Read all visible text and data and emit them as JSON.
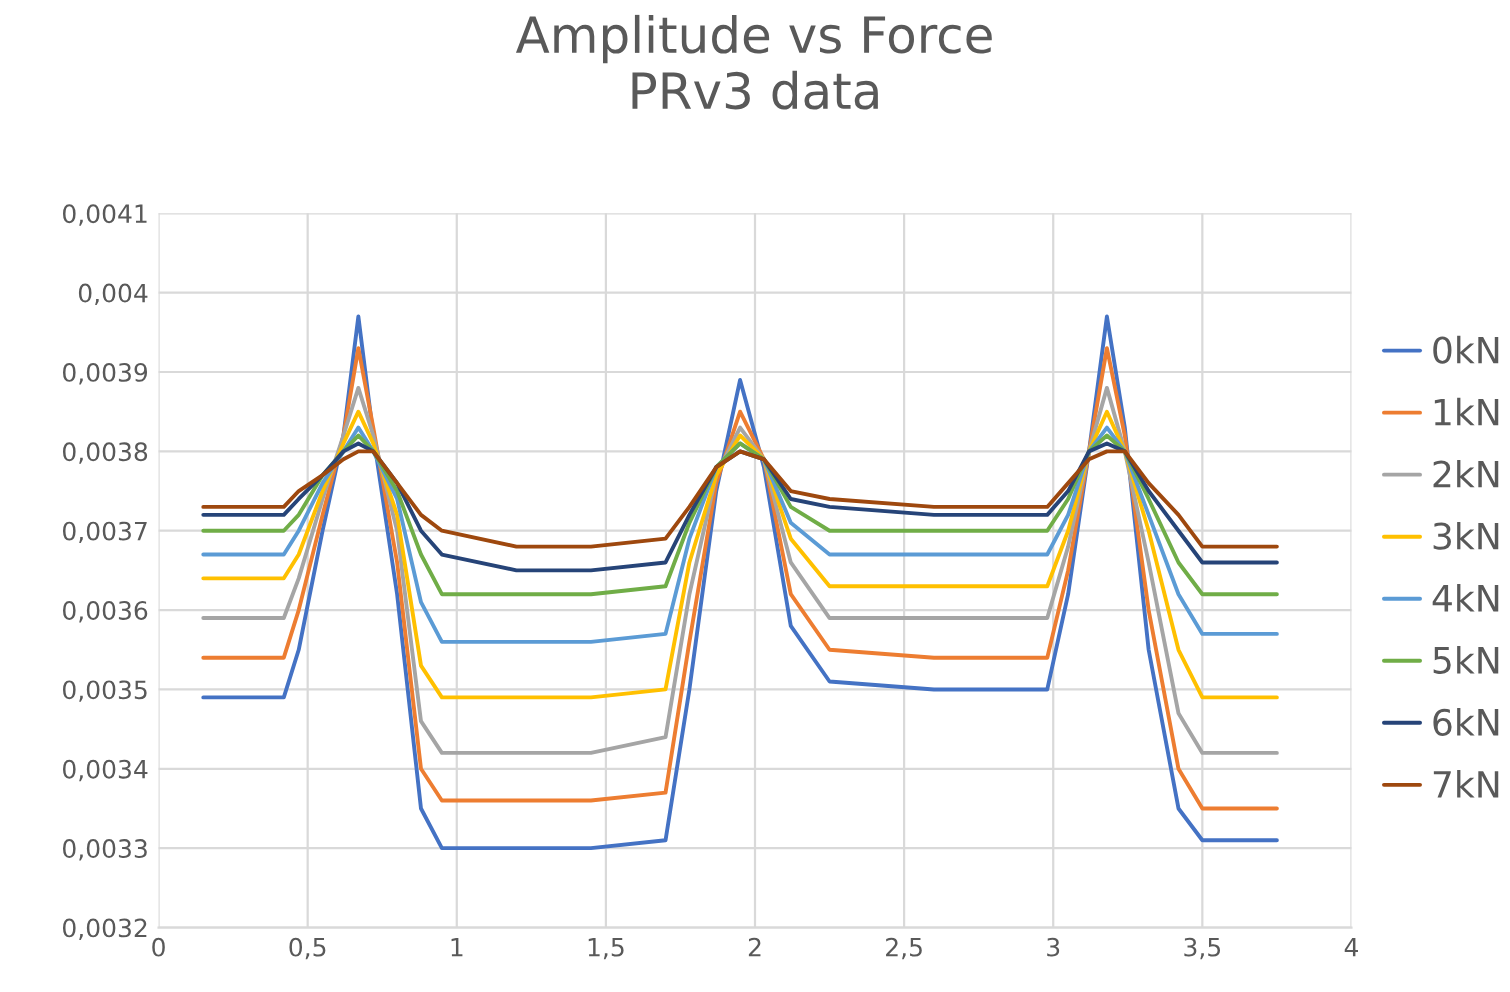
{
  "chart_data": {
    "type": "line",
    "title": "Amplitude vs Force\nPRv3 data",
    "x": [
      0.15,
      0.3,
      0.42,
      0.47,
      0.55,
      0.62,
      0.67,
      0.72,
      0.8,
      0.88,
      0.95,
      1.2,
      1.45,
      1.7,
      1.78,
      1.87,
      1.95,
      2.03,
      2.12,
      2.25,
      2.6,
      2.98,
      3.05,
      3.12,
      3.18,
      3.24,
      3.32,
      3.42,
      3.5,
      3.75
    ],
    "series": [
      {
        "name": "0kN",
        "color": "#4472c4",
        "values": [
          0.00349,
          0.00349,
          0.00349,
          0.00355,
          0.0037,
          0.00382,
          0.00397,
          0.00382,
          0.00362,
          0.00335,
          0.0033,
          0.0033,
          0.0033,
          0.00331,
          0.0035,
          0.00375,
          0.00389,
          0.00378,
          0.00358,
          0.00351,
          0.0035,
          0.0035,
          0.00362,
          0.0038,
          0.00397,
          0.00383,
          0.00355,
          0.00335,
          0.00331,
          0.00331
        ]
      },
      {
        "name": "1kN",
        "color": "#ed7d31",
        "values": [
          0.00354,
          0.00354,
          0.00354,
          0.0036,
          0.00372,
          0.00382,
          0.00393,
          0.00383,
          0.00366,
          0.0034,
          0.00336,
          0.00336,
          0.00336,
          0.00337,
          0.00356,
          0.00376,
          0.00385,
          0.00379,
          0.00362,
          0.00355,
          0.00354,
          0.00354,
          0.00365,
          0.0038,
          0.00393,
          0.00382,
          0.0036,
          0.0034,
          0.00335,
          0.00335
        ]
      },
      {
        "name": "2kN",
        "color": "#a5a5a5",
        "values": [
          0.00359,
          0.00359,
          0.00359,
          0.00364,
          0.00374,
          0.00382,
          0.00388,
          0.00382,
          0.0037,
          0.00346,
          0.00342,
          0.00342,
          0.00342,
          0.00344,
          0.00362,
          0.00377,
          0.00383,
          0.00379,
          0.00366,
          0.00359,
          0.00359,
          0.00359,
          0.00368,
          0.0038,
          0.00388,
          0.0038,
          0.00366,
          0.00347,
          0.00342,
          0.00342
        ]
      },
      {
        "name": "3kN",
        "color": "#ffc000",
        "values": [
          0.00364,
          0.00364,
          0.00364,
          0.00367,
          0.00375,
          0.00381,
          0.00385,
          0.00381,
          0.00372,
          0.00353,
          0.00349,
          0.00349,
          0.00349,
          0.0035,
          0.00366,
          0.00377,
          0.00382,
          0.00379,
          0.00369,
          0.00363,
          0.00363,
          0.00363,
          0.0037,
          0.0038,
          0.00385,
          0.0038,
          0.0037,
          0.00355,
          0.00349,
          0.00349
        ]
      },
      {
        "name": "4kN",
        "color": "#5b9bd5",
        "values": [
          0.00367,
          0.00367,
          0.00367,
          0.0037,
          0.00376,
          0.0038,
          0.00383,
          0.0038,
          0.00374,
          0.00361,
          0.00356,
          0.00356,
          0.00356,
          0.00357,
          0.00369,
          0.00378,
          0.00381,
          0.00379,
          0.00371,
          0.00367,
          0.00367,
          0.00367,
          0.00372,
          0.0038,
          0.00383,
          0.0038,
          0.00372,
          0.00362,
          0.00357,
          0.00357
        ]
      },
      {
        "name": "5kN",
        "color": "#70ad47",
        "values": [
          0.0037,
          0.0037,
          0.0037,
          0.00372,
          0.00377,
          0.0038,
          0.00382,
          0.0038,
          0.00375,
          0.00367,
          0.00362,
          0.00362,
          0.00362,
          0.00363,
          0.00371,
          0.00378,
          0.00381,
          0.00379,
          0.00373,
          0.0037,
          0.0037,
          0.0037,
          0.00374,
          0.0038,
          0.00382,
          0.0038,
          0.00374,
          0.00366,
          0.00362,
          0.00362
        ]
      },
      {
        "name": "6kN",
        "color": "#264478",
        "values": [
          0.00372,
          0.00372,
          0.00372,
          0.00374,
          0.00377,
          0.0038,
          0.00381,
          0.0038,
          0.00376,
          0.0037,
          0.00367,
          0.00365,
          0.00365,
          0.00366,
          0.00372,
          0.00378,
          0.0038,
          0.00379,
          0.00374,
          0.00373,
          0.00372,
          0.00372,
          0.00375,
          0.0038,
          0.00381,
          0.0038,
          0.00375,
          0.0037,
          0.00366,
          0.00366
        ]
      },
      {
        "name": "7kN",
        "color": "#9e480e",
        "values": [
          0.00373,
          0.00373,
          0.00373,
          0.00375,
          0.00377,
          0.00379,
          0.0038,
          0.0038,
          0.00376,
          0.00372,
          0.0037,
          0.00368,
          0.00368,
          0.00369,
          0.00373,
          0.00378,
          0.0038,
          0.00379,
          0.00375,
          0.00374,
          0.00373,
          0.00373,
          0.00376,
          0.00379,
          0.0038,
          0.0038,
          0.00376,
          0.00372,
          0.00368,
          0.00368
        ]
      }
    ],
    "xlim": [
      0,
      4
    ],
    "xticks": [
      0,
      {
        "value": 0.5,
        "label": "0,5"
      },
      1,
      {
        "value": 1.5,
        "label": "1,5"
      },
      2,
      {
        "value": 2.5,
        "label": "2,5"
      },
      3,
      {
        "value": 3.5,
        "label": "3,5"
      },
      4
    ],
    "ylim": [
      0.0032,
      0.0041
    ],
    "yticks": [
      {
        "value": 0.0032,
        "label": "0,0032"
      },
      {
        "value": 0.0033,
        "label": "0,0033"
      },
      {
        "value": 0.0034,
        "label": "0,0034"
      },
      {
        "value": 0.0035,
        "label": "0,0035"
      },
      {
        "value": 0.0036,
        "label": "0,0036"
      },
      {
        "value": 0.0037,
        "label": "0,0037"
      },
      {
        "value": 0.0038,
        "label": "0,0038"
      },
      {
        "value": 0.0039,
        "label": "0,0039"
      },
      {
        "value": 0.004,
        "label": "0,004"
      },
      {
        "value": 0.0041,
        "label": "0,0041"
      }
    ],
    "grid": true,
    "legend": "right",
    "marker": "none",
    "line_style": "solid"
  }
}
